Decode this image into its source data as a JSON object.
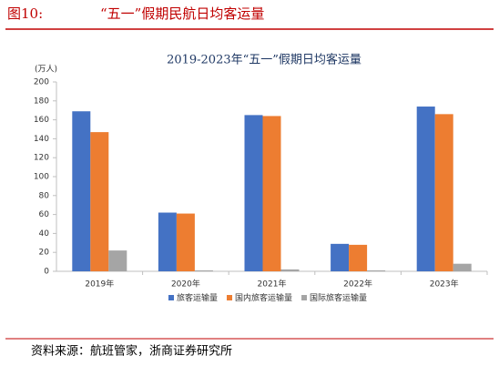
{
  "header": {
    "label": "图10:",
    "title": "“五一”假期民航日均客运量"
  },
  "chart_data": {
    "type": "bar",
    "title": "2019-2023年“五一”假期日均客运量",
    "y_label": "(万人)",
    "categories": [
      "2019年",
      "2020年",
      "2021年",
      "2022年",
      "2023年"
    ],
    "series": [
      {
        "name": "旅客运输量",
        "color": "#4472c4",
        "values": [
          169,
          62,
          165,
          29,
          174
        ]
      },
      {
        "name": "国内旅客运输量",
        "color": "#ed7d31",
        "values": [
          147,
          61,
          164,
          28,
          166
        ]
      },
      {
        "name": "国际旅客运输量",
        "color": "#a5a5a5",
        "values": [
          22,
          1,
          2,
          1,
          8
        ]
      }
    ],
    "ylim": [
      0,
      200
    ],
    "yticks": [
      0,
      20,
      40,
      60,
      80,
      100,
      120,
      140,
      160,
      180,
      200
    ],
    "grid": false,
    "legend": "bottom"
  },
  "source": "资料来源：航班管家，浙商证券研究所"
}
